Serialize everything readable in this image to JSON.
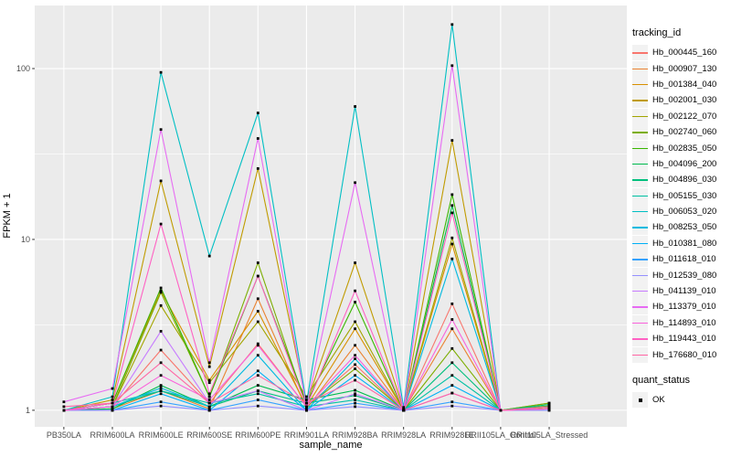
{
  "figure": {
    "y_axis_title": "FPKM + 1",
    "x_axis_title": "sample_name",
    "legend": {
      "tracking_title": "tracking_id",
      "quant_title": "quant_status",
      "quant_items": [
        {
          "label": "OK"
        }
      ]
    },
    "colors": {
      "panel_bg": "#EBEBEB",
      "grid": "#FFFFFF",
      "legend_key_bg": "#F2F2F2",
      "tick_text": "#4D4D4D",
      "tick_mark": "#333333",
      "point": "#000000"
    }
  },
  "chart_data": {
    "type": "line",
    "title": "",
    "xlabel": "sample_name",
    "ylabel": "FPKM + 1",
    "y_scale": "log10",
    "ylim": [
      0.8,
      234
    ],
    "y_ticks": [
      1,
      10,
      100
    ],
    "y_minor_ticks": [
      3.1623,
      31.623
    ],
    "grid": true,
    "legend_position": "right",
    "point_shape": "filled-square",
    "quant_status": "OK",
    "categories": [
      "PB350LA",
      "RRIM600LA",
      "RRIM600LE",
      "RRIM600SE",
      "RRIM600PE",
      "RRIM901LA",
      "RRIM928BA",
      "RRIM928LA",
      "RRIM928LE",
      "RRII105LA_Control",
      "RRII105LA_Stressed"
    ],
    "series": [
      {
        "name": "Hb_000445_160",
        "color": "#F8766D",
        "values": [
          1.0,
          1.05,
          2.25,
          1.1,
          2.45,
          1.05,
          1.85,
          1.0,
          4.2,
          1.0,
          1.05
        ]
      },
      {
        "name": "Hb_000907_130",
        "color": "#EA8331",
        "values": [
          1.0,
          1.02,
          1.3,
          1.02,
          4.5,
          1.02,
          2.4,
          1.0,
          3.0,
          1.0,
          1.03
        ]
      },
      {
        "name": "Hb_001384_040",
        "color": "#D89000",
        "values": [
          1.0,
          1.1,
          5.0,
          1.5,
          3.8,
          1.05,
          3.0,
          1.0,
          9.4,
          1.0,
          1.05
        ]
      },
      {
        "name": "Hb_002001_030",
        "color": "#C09B00",
        "values": [
          1.0,
          1.15,
          22,
          1.8,
          26,
          1.1,
          7.3,
          1.02,
          38,
          1.0,
          1.06
        ]
      },
      {
        "name": "Hb_002122_070",
        "color": "#A3A500",
        "values": [
          1.0,
          1.05,
          4.1,
          1.45,
          3.3,
          1.2,
          3.3,
          1.0,
          10.2,
          1.0,
          1.1
        ]
      },
      {
        "name": "Hb_002740_060",
        "color": "#7CAE00",
        "values": [
          1.0,
          1.05,
          4.9,
          1.2,
          7.3,
          1.05,
          1.75,
          1.0,
          2.3,
          1.0,
          1.1
        ]
      },
      {
        "name": "Hb_002835_050",
        "color": "#39B600",
        "values": [
          1.0,
          1.1,
          5.2,
          1.2,
          6.1,
          1.1,
          4.3,
          1.0,
          18.3,
          1.0,
          1.06
        ]
      },
      {
        "name": "Hb_004096_200",
        "color": "#00BB4E",
        "values": [
          1.0,
          1.02,
          1.4,
          1.05,
          1.4,
          1.15,
          1.31,
          1.0,
          15.8,
          1.0,
          1.05
        ]
      },
      {
        "name": "Hb_004896_030",
        "color": "#00BF7D",
        "values": [
          1.0,
          1.05,
          1.3,
          1.05,
          1.3,
          1.1,
          1.22,
          1.0,
          1.9,
          1.0,
          1.08
        ]
      },
      {
        "name": "Hb_005155_030",
        "color": "#00C1A3",
        "values": [
          1.0,
          1.1,
          1.3,
          1.1,
          1.25,
          1.05,
          1.15,
          1.0,
          1.6,
          1.0,
          1.05
        ]
      },
      {
        "name": "Hb_006053_020",
        "color": "#00BFC4",
        "values": [
          1.0,
          1.2,
          95,
          8.0,
          55,
          1.1,
          60,
          1.04,
          181,
          1.0,
          1.02
        ]
      },
      {
        "name": "Hb_008253_050",
        "color": "#00BAE0",
        "values": [
          1.0,
          1.05,
          1.35,
          1.05,
          2.1,
          1.0,
          2.0,
          1.0,
          7.7,
          1.0,
          1.02
        ]
      },
      {
        "name": "Hb_010381_080",
        "color": "#00B0F6",
        "values": [
          1.0,
          1.0,
          1.25,
          1.0,
          1.7,
          1.0,
          1.6,
          1.0,
          1.4,
          1.0,
          1.02
        ]
      },
      {
        "name": "Hb_011618_010",
        "color": "#35A2FF",
        "values": [
          1.0,
          1.0,
          1.12,
          1.0,
          1.15,
          1.0,
          1.1,
          1.0,
          1.12,
          1.0,
          1.0
        ]
      },
      {
        "name": "Hb_012539_080",
        "color": "#9590FF",
        "values": [
          1.0,
          1.0,
          1.06,
          1.0,
          1.06,
          1.0,
          1.05,
          1.0,
          1.06,
          1.0,
          1.0
        ]
      },
      {
        "name": "Hb_041139_010",
        "color": "#C77CFF",
        "values": [
          1.0,
          1.05,
          2.9,
          1.1,
          1.3,
          1.0,
          1.25,
          1.0,
          1.26,
          1.0,
          1.02
        ]
      },
      {
        "name": "Hb_113379_010",
        "color": "#E76BF3",
        "values": [
          1.12,
          1.34,
          44,
          1.9,
          39,
          1.05,
          21.5,
          1.0,
          104,
          1.0,
          1.02
        ]
      },
      {
        "name": "Hb_114893_010",
        "color": "#FA62DB",
        "values": [
          1.0,
          1.05,
          1.6,
          1.15,
          2.4,
          1.05,
          2.1,
          1.0,
          3.4,
          1.0,
          1.02
        ]
      },
      {
        "name": "Hb_119443_010",
        "color": "#FF61C3",
        "values": [
          1.0,
          1.1,
          12.3,
          1.25,
          6.1,
          1.05,
          5.0,
          1.0,
          14.3,
          1.0,
          1.02
        ]
      },
      {
        "name": "Hb_176680_010",
        "color": "#FF67A4",
        "values": [
          1.05,
          1.1,
          1.9,
          1.1,
          1.6,
          1.1,
          1.5,
          1.0,
          1.26,
          1.0,
          1.05
        ]
      }
    ]
  }
}
